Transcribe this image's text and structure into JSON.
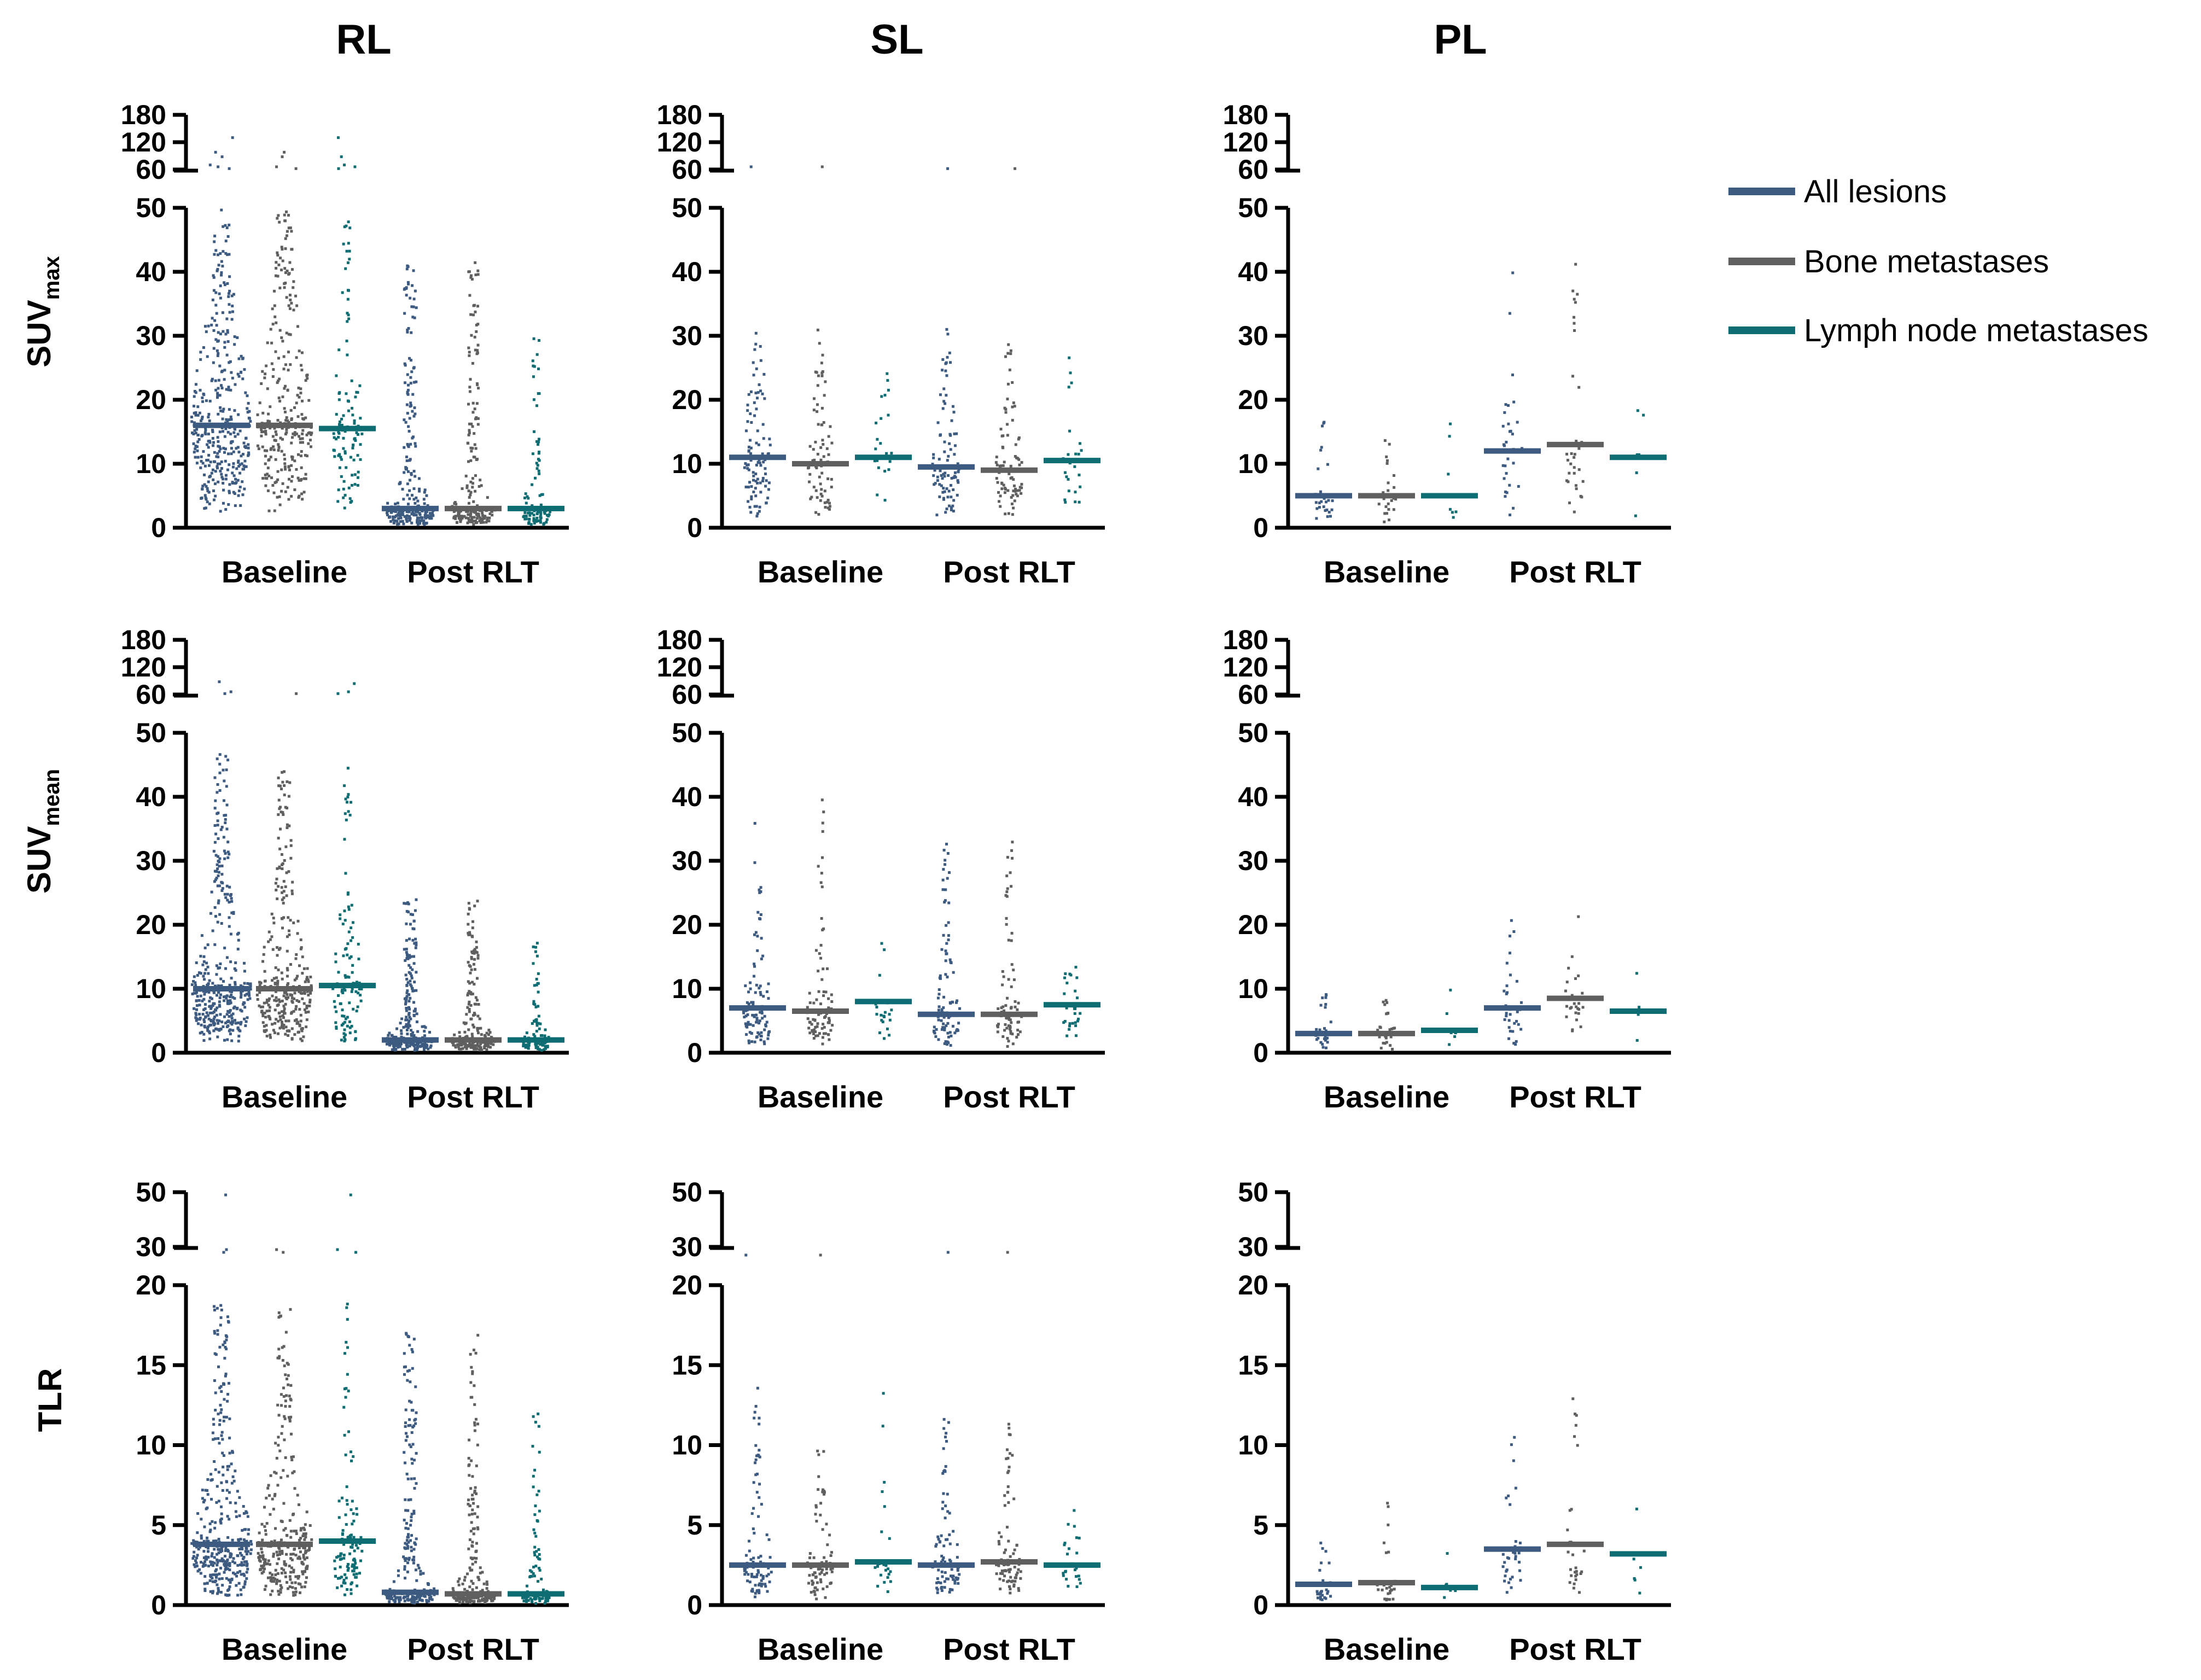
{
  "figure": {
    "columns": [
      "RL",
      "SL",
      "PL"
    ],
    "groups": [
      "Baseline",
      "Post RLT"
    ],
    "rows": [
      {
        "label": "SUV",
        "subscript": "max"
      },
      {
        "label": "SUV",
        "subscript": "mean"
      },
      {
        "label": "TLR",
        "subscript": ""
      }
    ]
  },
  "legend": {
    "items": [
      {
        "label": "All lesions",
        "color": "#3d5a80"
      },
      {
        "label": "Bone metastases",
        "color": "#5f5f5f"
      },
      {
        "label": "Lymph node metastases",
        "color": "#0e6d73"
      }
    ]
  },
  "chart_data": [
    {
      "type": "scatter",
      "row": "SUVmax",
      "column": "RL",
      "ylim": [
        0,
        50
      ],
      "yticks": [
        0,
        10,
        20,
        30,
        40,
        50
      ],
      "break_ticks": [
        60,
        120,
        180
      ],
      "categories": [
        "Baseline",
        "Post RLT"
      ],
      "series": [
        {
          "name": "All lesions",
          "medians": [
            16,
            3
          ],
          "n": [
            380,
            260
          ],
          "upper": [
            50,
            42
          ],
          "outliers": [
            [
              62,
              66,
              70,
              88,
              98,
              130
            ],
            []
          ]
        },
        {
          "name": "Bone metastases",
          "medians": [
            16,
            3
          ],
          "n": [
            300,
            220
          ],
          "upper": [
            50,
            42
          ],
          "outliers": [
            [
              62,
              66,
              88,
              98
            ],
            []
          ]
        },
        {
          "name": "Lymph node metastases",
          "medians": [
            15.5,
            3
          ],
          "n": [
            110,
            100
          ],
          "upper": [
            50,
            30
          ],
          "outliers": [
            [
              62,
              66,
              70,
              88,
              130
            ],
            []
          ]
        }
      ]
    },
    {
      "type": "scatter",
      "row": "SUVmax",
      "column": "SL",
      "ylim": [
        0,
        50
      ],
      "yticks": [
        0,
        10,
        20,
        30,
        40,
        50
      ],
      "break_ticks": [
        60,
        120,
        180
      ],
      "categories": [
        "Baseline",
        "Post RLT"
      ],
      "series": [
        {
          "name": "All lesions",
          "medians": [
            11,
            9.5
          ],
          "n": [
            100,
            95
          ],
          "upper": [
            31,
            32
          ],
          "outliers": [
            [
              66
            ],
            [
              62
            ]
          ]
        },
        {
          "name": "Bone metastases",
          "medians": [
            10,
            9
          ],
          "n": [
            85,
            85
          ],
          "upper": [
            31,
            32
          ],
          "outliers": [
            [
              66
            ],
            [
              62
            ]
          ]
        },
        {
          "name": "Lymph node metastases",
          "medians": [
            11,
            10.5
          ],
          "n": [
            25,
            28
          ],
          "upper": [
            27,
            27
          ],
          "outliers": [
            [],
            []
          ]
        }
      ]
    },
    {
      "type": "scatter",
      "row": "SUVmax",
      "column": "PL",
      "ylim": [
        0,
        50
      ],
      "yticks": [
        0,
        10,
        20,
        30,
        40,
        50
      ],
      "break_ticks": [
        60,
        120,
        180
      ],
      "categories": [
        "Baseline",
        "Post RLT"
      ],
      "series": [
        {
          "name": "All lesions",
          "medians": [
            5,
            12
          ],
          "n": [
            30,
            35
          ],
          "upper": [
            17,
            42
          ],
          "outliers": [
            [],
            []
          ]
        },
        {
          "name": "Bone metastases",
          "medians": [
            5,
            13
          ],
          "n": [
            28,
            32
          ],
          "upper": [
            16,
            42
          ],
          "outliers": [
            [],
            []
          ]
        },
        {
          "name": "Lymph node metastases",
          "medians": [
            5,
            11
          ],
          "n": [
            7,
            6
          ],
          "upper": [
            17,
            23
          ],
          "outliers": [
            [],
            []
          ]
        }
      ]
    },
    {
      "type": "scatter",
      "row": "SUVmean",
      "column": "RL",
      "ylim": [
        0,
        50
      ],
      "yticks": [
        0,
        10,
        20,
        30,
        40,
        50
      ],
      "break_ticks": [
        60,
        120,
        180
      ],
      "categories": [
        "Baseline",
        "Post RLT"
      ],
      "series": [
        {
          "name": "All lesions",
          "medians": [
            10,
            2
          ],
          "n": [
            380,
            260
          ],
          "upper": [
            47,
            24
          ],
          "outliers": [
            [
              62,
              66,
              88
            ],
            []
          ]
        },
        {
          "name": "Bone metastases",
          "medians": [
            10,
            2
          ],
          "n": [
            300,
            220
          ],
          "upper": [
            44,
            24
          ],
          "outliers": [
            [
              62
            ],
            []
          ]
        },
        {
          "name": "Lymph node metastases",
          "medians": [
            10.5,
            2
          ],
          "n": [
            110,
            100
          ],
          "upper": [
            47,
            19
          ],
          "outliers": [
            [
              62,
              66,
              84
            ],
            []
          ]
        }
      ]
    },
    {
      "type": "scatter",
      "row": "SUVmean",
      "column": "SL",
      "ylim": [
        0,
        50
      ],
      "yticks": [
        0,
        10,
        20,
        30,
        40,
        50
      ],
      "break_ticks": [
        60,
        120,
        180
      ],
      "categories": [
        "Baseline",
        "Post RLT"
      ],
      "series": [
        {
          "name": "All lesions",
          "medians": [
            7,
            6
          ],
          "n": [
            100,
            95
          ],
          "upper": [
            42,
            33
          ],
          "outliers": [
            [],
            []
          ]
        },
        {
          "name": "Bone metastases",
          "medians": [
            6.5,
            6
          ],
          "n": [
            85,
            85
          ],
          "upper": [
            42,
            33
          ],
          "outliers": [
            [],
            []
          ]
        },
        {
          "name": "Lymph node metastases",
          "medians": [
            8,
            7.5
          ],
          "n": [
            25,
            28
          ],
          "upper": [
            21,
            19
          ],
          "outliers": [
            [],
            []
          ]
        }
      ]
    },
    {
      "type": "scatter",
      "row": "SUVmean",
      "column": "PL",
      "ylim": [
        0,
        50
      ],
      "yticks": [
        0,
        10,
        20,
        30,
        40,
        50
      ],
      "break_ticks": [
        60,
        120,
        180
      ],
      "categories": [
        "Baseline",
        "Post RLT"
      ],
      "series": [
        {
          "name": "All lesions",
          "medians": [
            3,
            7
          ],
          "n": [
            30,
            35
          ],
          "upper": [
            10.5,
            24
          ],
          "outliers": [
            [],
            []
          ]
        },
        {
          "name": "Bone metastases",
          "medians": [
            3,
            8.5
          ],
          "n": [
            28,
            32
          ],
          "upper": [
            9.5,
            24
          ],
          "outliers": [
            [],
            []
          ]
        },
        {
          "name": "Lymph node metastases",
          "medians": [
            3.5,
            6.5
          ],
          "n": [
            7,
            6
          ],
          "upper": [
            10.5,
            14
          ],
          "outliers": [
            [],
            []
          ]
        }
      ]
    },
    {
      "type": "scatter",
      "row": "TLR",
      "column": "RL",
      "ylim": [
        0,
        20
      ],
      "yticks": [
        0,
        5,
        10,
        15,
        20
      ],
      "break_ticks": [
        30,
        50
      ],
      "categories": [
        "Baseline",
        "Post RLT"
      ],
      "series": [
        {
          "name": "All lesions",
          "medians": [
            3.8,
            0.8
          ],
          "n": [
            380,
            260
          ],
          "upper": [
            19,
            17
          ],
          "outliers": [
            [
              28,
              29,
              49
            ],
            []
          ]
        },
        {
          "name": "Bone metastases",
          "medians": [
            3.8,
            0.7
          ],
          "n": [
            300,
            220
          ],
          "upper": [
            18.5,
            17
          ],
          "outliers": [
            [
              28,
              29
            ],
            []
          ]
        },
        {
          "name": "Lymph node metastases",
          "medians": [
            4,
            0.7
          ],
          "n": [
            110,
            100
          ],
          "upper": [
            19,
            12.5
          ],
          "outliers": [
            [
              28,
              29,
              49
            ],
            []
          ]
        }
      ]
    },
    {
      "type": "scatter",
      "row": "TLR",
      "column": "SL",
      "ylim": [
        0,
        20
      ],
      "yticks": [
        0,
        5,
        10,
        15,
        20
      ],
      "break_ticks": [
        30,
        50
      ],
      "categories": [
        "Baseline",
        "Post RLT"
      ],
      "series": [
        {
          "name": "All lesions",
          "medians": [
            2.5,
            2.5
          ],
          "n": [
            100,
            95
          ],
          "upper": [
            14,
            12.5
          ],
          "outliers": [
            [
              27
            ],
            [
              28
            ]
          ]
        },
        {
          "name": "Bone metastases",
          "medians": [
            2.5,
            2.7
          ],
          "n": [
            85,
            85
          ],
          "upper": [
            10.5,
            12.5
          ],
          "outliers": [
            [
              27
            ],
            [
              28
            ]
          ]
        },
        {
          "name": "Lymph node metastases",
          "medians": [
            2.7,
            2.5
          ],
          "n": [
            25,
            28
          ],
          "upper": [
            14,
            6
          ],
          "outliers": [
            [],
            []
          ]
        }
      ]
    },
    {
      "type": "scatter",
      "row": "TLR",
      "column": "PL",
      "ylim": [
        0,
        20
      ],
      "yticks": [
        0,
        5,
        10,
        15,
        20
      ],
      "break_ticks": [
        30,
        50
      ],
      "categories": [
        "Baseline",
        "Post RLT"
      ],
      "series": [
        {
          "name": "All lesions",
          "medians": [
            1.3,
            3.5
          ],
          "n": [
            30,
            35
          ],
          "upper": [
            6.5,
            14
          ],
          "outliers": [
            [],
            []
          ]
        },
        {
          "name": "Bone metastases",
          "medians": [
            1.4,
            3.8
          ],
          "n": [
            28,
            32
          ],
          "upper": [
            6.5,
            14
          ],
          "outliers": [
            [],
            []
          ]
        },
        {
          "name": "Lymph node metastases",
          "medians": [
            1.1,
            3.2
          ],
          "n": [
            7,
            6
          ],
          "upper": [
            4.2,
            8
          ],
          "outliers": [
            [],
            []
          ]
        }
      ]
    }
  ]
}
